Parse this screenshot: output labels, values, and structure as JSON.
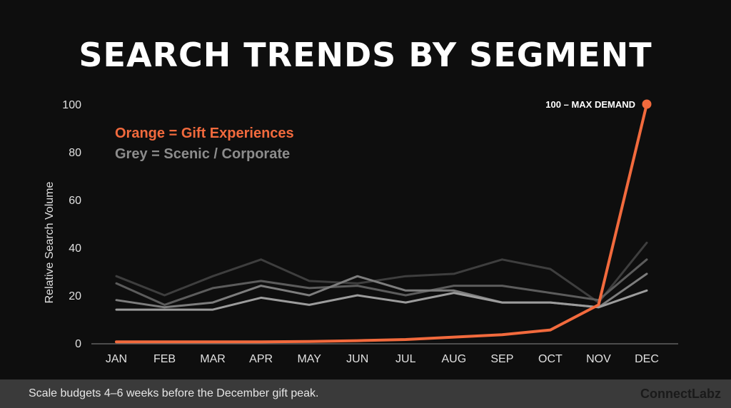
{
  "title": "SEARCH TRENDS BY SEGMENT",
  "legend": {
    "orange": "Orange = Gift Experiences",
    "grey": "Grey = Scenic / Corporate"
  },
  "colors": {
    "background": "#0e0e0e",
    "accent": "#f26a3d",
    "footer": "#3a3a3a"
  },
  "footer": {
    "note": "Scale budgets 4–6 weeks before the December gift peak.",
    "brand": "ConnectLabz"
  },
  "chart_data": {
    "type": "line",
    "ylabel": "Relative Search Volume",
    "xlabel": "",
    "categories": [
      "JAN",
      "FEB",
      "MAR",
      "APR",
      "MAY",
      "JUN",
      "JUL",
      "AUG",
      "SEP",
      "OCT",
      "NOV",
      "DEC"
    ],
    "ylim": [
      0,
      100
    ],
    "yticks": [
      0,
      20,
      40,
      60,
      80,
      100
    ],
    "grid": false,
    "legend_position": "top-left",
    "annotation": "100 – MAX DEMAND",
    "series": [
      {
        "color": "#3e3e3e",
        "values": [
          28,
          20,
          28,
          35,
          26,
          25,
          28,
          29,
          35,
          31,
          17,
          42
        ]
      },
      {
        "color": "#5c5c5c",
        "values": [
          25,
          16,
          23,
          26,
          23,
          24,
          20,
          24,
          24,
          21,
          18,
          35
        ]
      },
      {
        "color": "#7d7d7d",
        "values": [
          18,
          15,
          17,
          24,
          20,
          28,
          22,
          22,
          17,
          17,
          15,
          29
        ]
      },
      {
        "color": "#9c9c9c",
        "values": [
          14,
          14,
          14,
          19,
          16,
          20,
          17,
          21,
          17,
          17,
          15,
          22
        ]
      },
      {
        "color": "#f26a3d",
        "highlight": true,
        "values": [
          0.5,
          0.5,
          0.5,
          0.5,
          0.7,
          1.0,
          1.5,
          2.5,
          3.5,
          5.5,
          16,
          100
        ]
      }
    ]
  }
}
